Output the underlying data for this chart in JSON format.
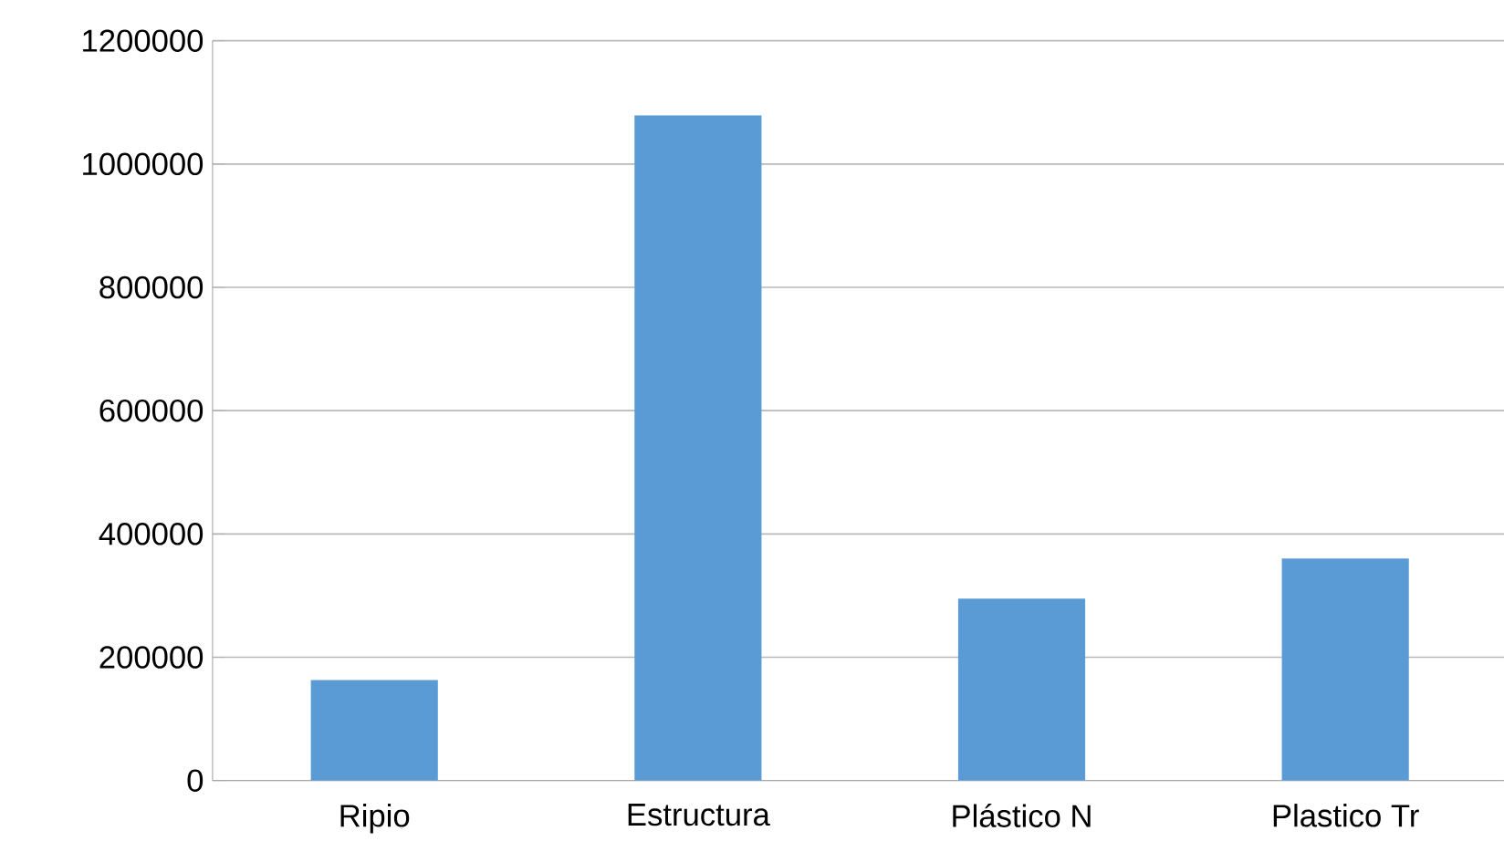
{
  "chart_data": {
    "type": "bar",
    "categories": [
      "Ripio",
      "Estructura",
      "Plástico N",
      "Plastico Tr"
    ],
    "values": [
      163000,
      1079000,
      295000,
      360000
    ],
    "color": "#5b9bd5",
    "ylim": [
      0,
      1200000
    ],
    "yticks": [
      0,
      200000,
      400000,
      600000,
      800000,
      1000000,
      1200000
    ],
    "grid": "y"
  }
}
